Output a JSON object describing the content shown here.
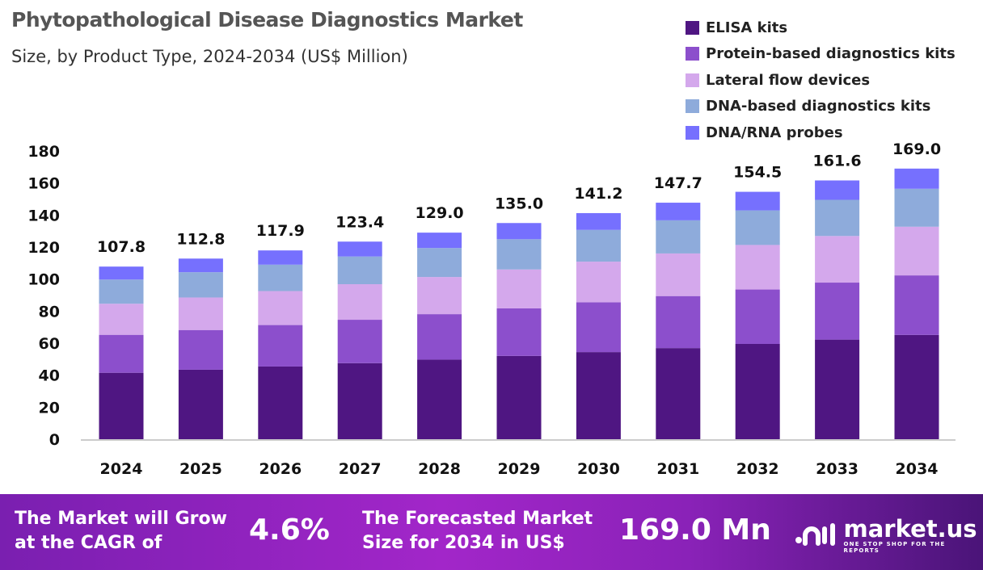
{
  "chart_data": {
    "type": "bar",
    "stacked": true,
    "title": "Phytopathological Disease Diagnostics Market",
    "subtitle": "Size, by Product Type, 2024-2034 (US$ Million)",
    "categories": [
      "2024",
      "2025",
      "2026",
      "2027",
      "2028",
      "2029",
      "2030",
      "2031",
      "2032",
      "2033",
      "2034"
    ],
    "totals": [
      107.8,
      112.8,
      117.9,
      123.4,
      129.0,
      135.0,
      141.2,
      147.7,
      154.5,
      161.6,
      169.0
    ],
    "total_labels": [
      "107.8",
      "112.8",
      "117.9",
      "123.4",
      "129.0",
      "135.0",
      "141.2",
      "147.7",
      "154.5",
      "161.6",
      "169.0"
    ],
    "series": [
      {
        "name": "ELISA kits",
        "color": "#4f1682",
        "values": [
          41.5,
          43.4,
          45.4,
          47.5,
          49.7,
          52.0,
          54.4,
          56.9,
          59.5,
          62.2,
          65.1
        ]
      },
      {
        "name": "Protein-based diagnostics kits",
        "color": "#8c4fcc",
        "values": [
          23.7,
          24.8,
          25.9,
          27.1,
          28.4,
          29.7,
          31.1,
          32.5,
          34.0,
          35.6,
          37.2
        ]
      },
      {
        "name": "Lateral flow devices",
        "color": "#d4a8ec",
        "values": [
          19.4,
          20.3,
          21.2,
          22.2,
          23.2,
          24.3,
          25.4,
          26.6,
          27.8,
          29.1,
          30.4
        ]
      },
      {
        "name": "DNA-based diagnostics kits",
        "color": "#8eabdb",
        "values": [
          15.1,
          15.8,
          16.5,
          17.3,
          18.1,
          18.9,
          19.8,
          20.7,
          21.6,
          22.6,
          23.7
        ]
      },
      {
        "name": "DNA/RNA probes",
        "color": "#7670fe",
        "values": [
          8.1,
          8.5,
          8.9,
          9.3,
          9.6,
          10.1,
          10.5,
          11.0,
          11.6,
          12.1,
          12.6
        ]
      }
    ],
    "ylim": [
      0,
      180
    ],
    "yticks": [
      0,
      20,
      40,
      60,
      80,
      100,
      120,
      140,
      160,
      180
    ],
    "grid": false,
    "legend": "top-right",
    "xlabel": "",
    "ylabel": ""
  },
  "banner": {
    "cagr_text_1": "The Market will Grow",
    "cagr_text_2": "at the CAGR of",
    "cagr_value": "4.6%",
    "forecast_text_1": "The Forecasted Market",
    "forecast_text_2": "Size for 2034 in US$",
    "forecast_value": "169.0 Mn",
    "brand": "market.us",
    "tagline": "ONE STOP SHOP FOR THE REPORTS"
  }
}
